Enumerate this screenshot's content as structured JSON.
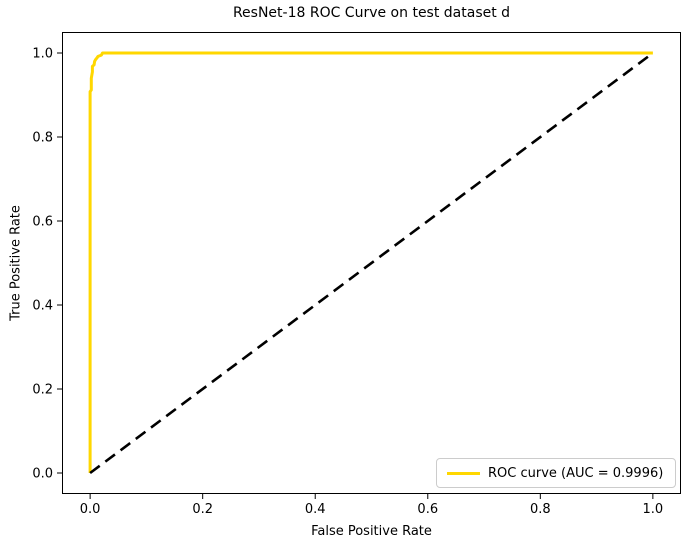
{
  "chart_data": {
    "type": "line",
    "title": "ResNet-18 ROC Curve on test dataset d",
    "xlabel": "False Positive Rate",
    "ylabel": "True Positive Rate",
    "xlim": [
      -0.05,
      1.05
    ],
    "ylim": [
      -0.05,
      1.05
    ],
    "grid": false,
    "xticks": {
      "values": [
        0.0,
        0.2,
        0.4,
        0.6,
        0.8,
        1.0
      ],
      "labels": [
        "0.0",
        "0.2",
        "0.4",
        "0.6",
        "0.8",
        "1.0"
      ]
    },
    "yticks": {
      "values": [
        0.0,
        0.2,
        0.4,
        0.6,
        0.8,
        1.0
      ],
      "labels": [
        "0.0",
        "0.2",
        "0.4",
        "0.6",
        "0.8",
        "1.0"
      ]
    },
    "auc": 0.9996,
    "series": [
      {
        "name": "ROC curve",
        "color": "#FFD700",
        "style": "solid",
        "linewidth": 3,
        "points": [
          [
            0,
            0
          ],
          [
            0,
            0.908
          ],
          [
            0.002,
            0.912
          ],
          [
            0.002,
            0.94
          ],
          [
            0.004,
            0.955
          ],
          [
            0.004,
            0.968
          ],
          [
            0.007,
            0.972
          ],
          [
            0.008,
            0.98
          ],
          [
            0.01,
            0.985
          ],
          [
            0.012,
            0.988
          ],
          [
            0.014,
            0.992
          ],
          [
            0.02,
            0.995
          ],
          [
            0.022,
            1.0
          ],
          [
            0.03,
            1.0
          ],
          [
            1.0,
            1.0
          ]
        ]
      },
      {
        "name": "chance diagonal",
        "color": "#000000",
        "style": "dashed",
        "linewidth": 2.6,
        "points": [
          [
            0,
            0
          ],
          [
            1.0,
            1.0
          ]
        ]
      }
    ],
    "legend": {
      "position": "lower right",
      "entries": [
        {
          "label": "ROC curve (AUC = 0.9996)",
          "color": "#FFD700",
          "style": "solid"
        }
      ]
    }
  }
}
